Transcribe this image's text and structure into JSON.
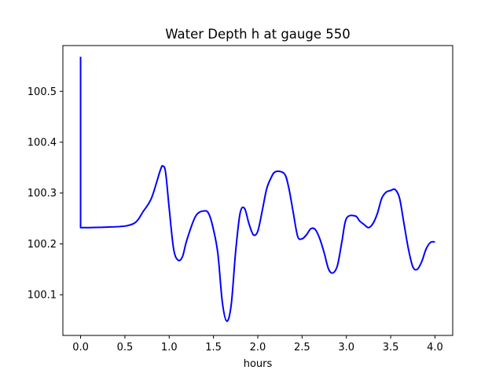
{
  "chart_data": {
    "type": "line",
    "title": "Water Depth h at gauge 550",
    "xlabel": "hours",
    "ylabel": "",
    "xlim": [
      -0.2,
      4.2
    ],
    "ylim": [
      100.02,
      100.59
    ],
    "xticks": [
      0.0,
      0.5,
      1.0,
      1.5,
      2.0,
      2.5,
      3.0,
      3.5,
      4.0
    ],
    "xtick_labels": [
      "0.0",
      "0.5",
      "1.0",
      "1.5",
      "2.0",
      "2.5",
      "3.0",
      "3.5",
      "4.0"
    ],
    "yticks": [
      100.1,
      100.2,
      100.3,
      100.4,
      100.5
    ],
    "ytick_labels": [
      "100.1",
      "100.2",
      "100.3",
      "100.4",
      "100.5"
    ],
    "grid": false,
    "series": [
      {
        "color": "#0000ff",
        "x": [
          0.0,
          0.0,
          0.1,
          0.3,
          0.5,
          0.6,
          0.65,
          0.7,
          0.8,
          0.9,
          0.93,
          0.96,
          1.0,
          1.05,
          1.1,
          1.15,
          1.2,
          1.3,
          1.4,
          1.45,
          1.5,
          1.55,
          1.6,
          1.65,
          1.7,
          1.75,
          1.8,
          1.85,
          1.9,
          1.95,
          2.0,
          2.05,
          2.1,
          2.15,
          2.2,
          2.3,
          2.35,
          2.4,
          2.45,
          2.5,
          2.55,
          2.6,
          2.65,
          2.7,
          2.75,
          2.8,
          2.85,
          2.9,
          2.95,
          3.0,
          3.1,
          3.15,
          3.2,
          3.25,
          3.3,
          3.35,
          3.4,
          3.45,
          3.5,
          3.55,
          3.6,
          3.65,
          3.7,
          3.75,
          3.8,
          3.85,
          3.9,
          3.95,
          4.0
        ],
        "y": [
          100.568,
          100.232,
          100.232,
          100.233,
          100.235,
          100.24,
          100.248,
          100.262,
          100.29,
          100.345,
          100.353,
          100.34,
          100.27,
          100.19,
          100.168,
          100.175,
          100.208,
          100.255,
          100.265,
          100.258,
          100.228,
          100.18,
          100.085,
          100.048,
          100.08,
          100.185,
          100.26,
          100.27,
          100.24,
          100.218,
          100.225,
          100.265,
          100.308,
          100.33,
          100.342,
          100.338,
          100.31,
          100.262,
          100.215,
          100.21,
          100.218,
          100.23,
          100.228,
          100.21,
          100.182,
          100.15,
          100.143,
          100.158,
          100.205,
          100.25,
          100.255,
          100.245,
          100.238,
          100.232,
          100.24,
          100.26,
          100.29,
          100.302,
          100.305,
          100.307,
          100.29,
          100.24,
          100.19,
          100.155,
          100.15,
          100.165,
          100.19,
          100.203,
          100.204
        ]
      }
    ]
  }
}
